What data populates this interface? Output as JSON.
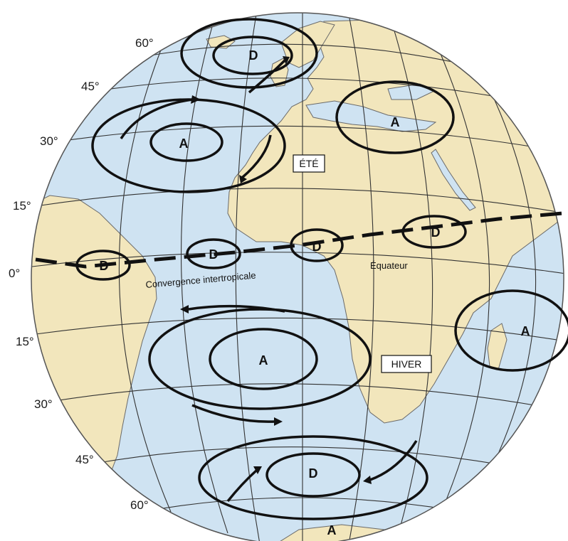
{
  "latitude_labels": {
    "n60": "60°",
    "n45": "45°",
    "n30": "30°",
    "n15": "15°",
    "eq": "0°",
    "s15": "15°",
    "s30": "30°",
    "s45": "45°",
    "s60": "60°"
  },
  "season_labels": {
    "summer": "ÉTÉ",
    "winter": "HIVER"
  },
  "text_labels": {
    "itcz": "Convergence intertropicale",
    "equator": "Équateur"
  },
  "pressure_systems": {
    "north_atlantic_high": "A",
    "iceland_low": "D",
    "mediterranean_high": "A",
    "itcz_low_1": "D",
    "itcz_low_2": "D",
    "itcz_low_3": "D",
    "itcz_low_4": "D",
    "south_atlantic_high": "A",
    "indian_ocean_high": "A",
    "southern_low": "D",
    "antarctic_high": "A"
  },
  "colors": {
    "ocean": "#cfe3f2",
    "land": "#f2e6bc",
    "ink": "#111111",
    "grid": "#333333"
  }
}
